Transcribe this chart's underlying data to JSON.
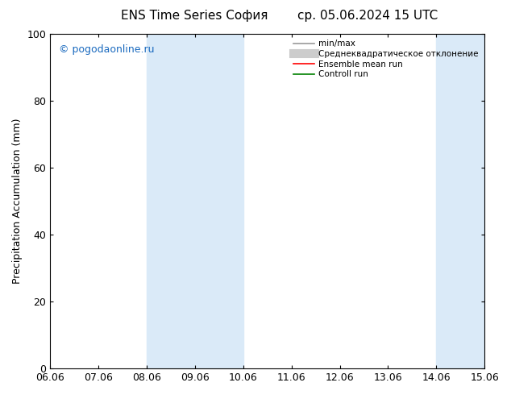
{
  "title_left": "ENS Time Series София",
  "title_right": "ср. 05.06.2024 15 UTC",
  "ylabel": "Precipitation Accumulation (mm)",
  "xlabel_ticks": [
    "06.06",
    "07.06",
    "08.06",
    "09.06",
    "10.06",
    "11.06",
    "12.06",
    "13.06",
    "14.06",
    "15.06"
  ],
  "ylim": [
    0,
    100
  ],
  "yticks": [
    0,
    20,
    40,
    60,
    80,
    100
  ],
  "background_color": "#ffffff",
  "plot_bg_color": "#ffffff",
  "shaded_regions": [
    {
      "xstart": 2.0,
      "xend": 4.0,
      "color": "#daeaf8"
    },
    {
      "xstart": 8.0,
      "xend": 9.6,
      "color": "#daeaf8"
    }
  ],
  "watermark_text": "© pogodaonline.ru",
  "watermark_color": "#1a6abf",
  "legend_entries": [
    {
      "label": "min/max",
      "color": "#999999",
      "lw": 1.2,
      "style": "solid"
    },
    {
      "label": "Среднеквадратическое отклонение",
      "color": "#cccccc",
      "lw": 8,
      "style": "solid"
    },
    {
      "label": "Ensemble mean run",
      "color": "#ff0000",
      "lw": 1.2,
      "style": "solid"
    },
    {
      "label": "Controll run",
      "color": "#008000",
      "lw": 1.2,
      "style": "solid"
    }
  ],
  "tick_fontsize": 9,
  "label_fontsize": 9,
  "title_fontsize": 11
}
